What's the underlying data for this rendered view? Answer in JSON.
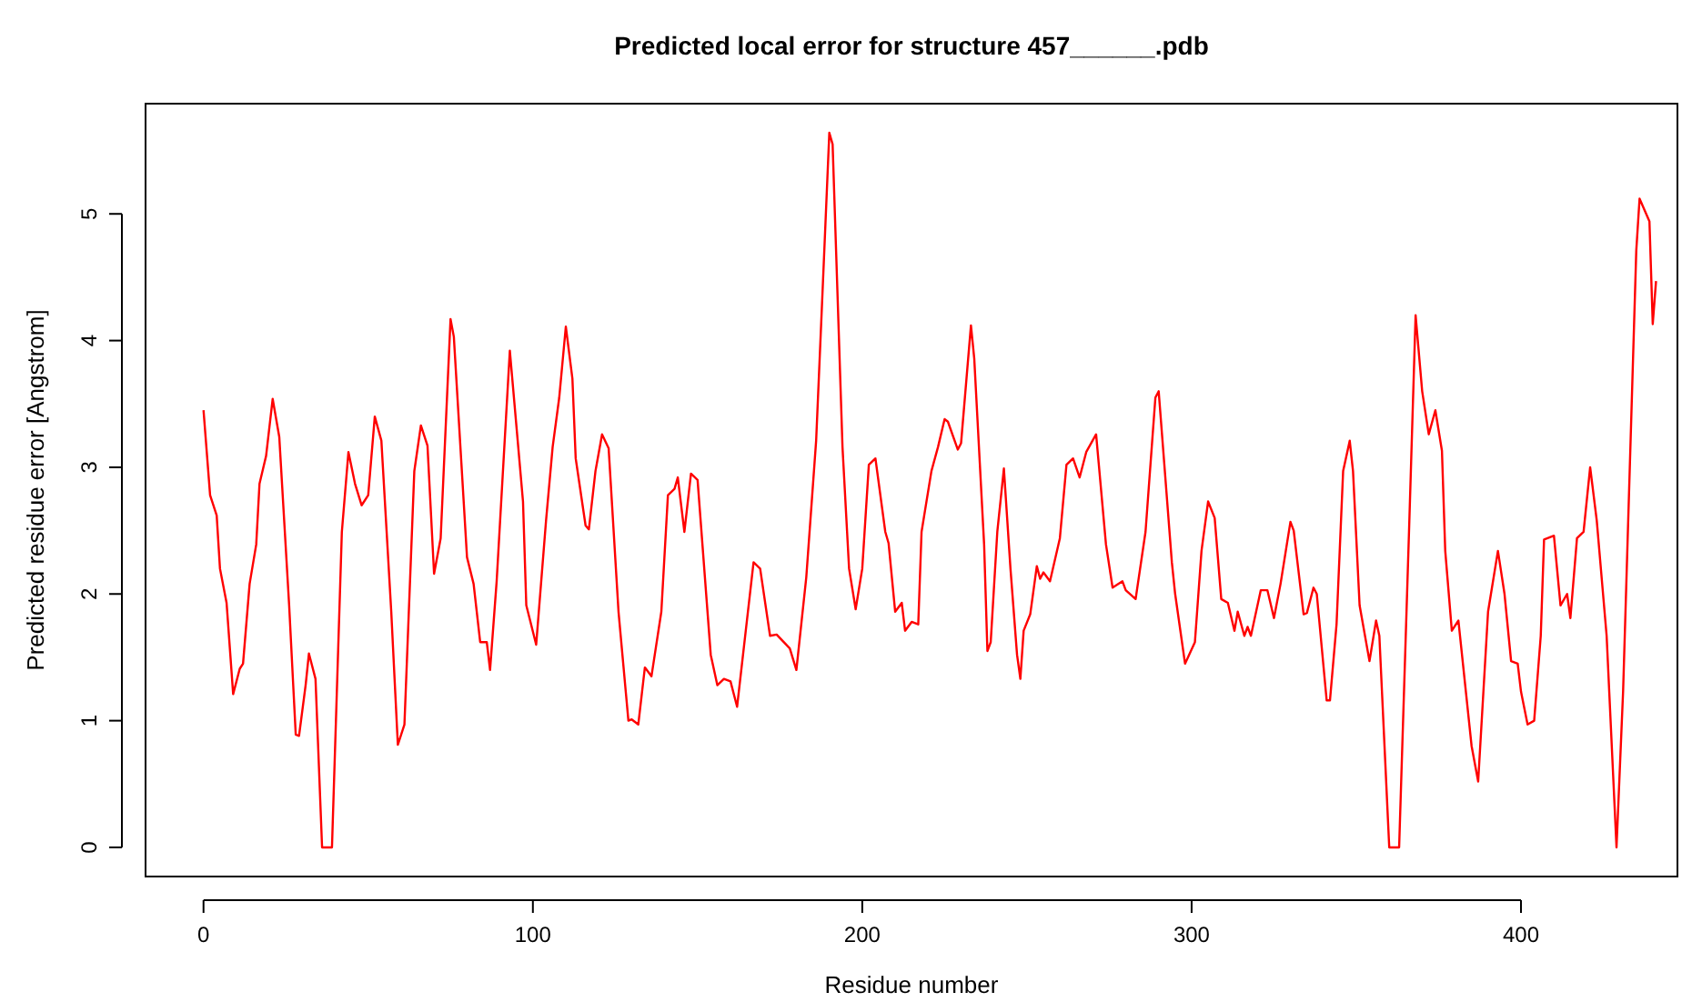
{
  "chart_data": {
    "type": "line",
    "title": "Predicted local error for structure 457______.pdb",
    "xlabel": "Residue number",
    "ylabel": "Predicted residue error [Angstrom]",
    "xlim": [
      -17.6,
      447.5
    ],
    "ylim": [
      -0.23,
      5.87
    ],
    "xticks": [
      0,
      100,
      200,
      300,
      400
    ],
    "yticks": [
      0,
      1,
      2,
      3,
      4,
      5
    ],
    "grid": false,
    "marker": "none",
    "line_style": "solid",
    "series": [
      {
        "color": "#ff0000",
        "x": [
          0,
          2,
          4,
          5,
          7,
          9,
          11,
          12,
          14,
          16,
          17,
          19,
          21,
          23,
          26,
          28,
          29,
          31,
          32,
          34,
          36,
          39,
          42,
          44,
          46,
          48,
          50,
          52,
          54,
          57,
          59,
          61,
          64,
          66,
          68,
          70,
          72,
          75,
          76,
          80,
          82,
          84,
          86,
          87,
          89,
          93,
          97,
          98,
          101,
          104,
          106,
          108,
          110,
          112,
          113,
          116,
          117,
          119,
          121,
          123,
          126,
          129,
          130,
          132,
          134,
          136,
          139,
          141,
          143,
          144,
          146,
          148,
          150,
          154,
          156,
          158,
          160,
          162,
          167,
          169,
          172,
          174,
          178,
          180,
          183,
          186,
          188,
          190,
          191,
          194,
          196,
          198,
          200,
          202,
          204,
          207,
          208,
          210,
          212,
          213,
          215,
          217,
          218,
          221,
          223,
          225,
          226,
          229,
          230,
          233,
          234,
          237,
          238,
          239,
          241,
          243,
          245,
          247,
          248,
          249,
          251,
          253,
          254,
          255,
          257,
          260,
          262,
          264,
          266,
          268,
          271,
          274,
          276,
          279,
          280,
          283,
          286,
          289,
          290,
          294,
          295,
          298,
          301,
          303,
          305,
          307,
          309,
          311,
          313,
          314,
          316,
          317,
          318,
          321,
          323,
          325,
          327,
          330,
          331,
          334,
          335,
          337,
          338,
          341,
          342,
          344,
          346,
          348,
          349,
          351,
          354,
          356,
          357,
          360,
          363,
          366,
          368,
          370,
          372,
          374,
          376,
          377,
          379,
          381,
          385,
          387,
          390,
          393,
          395,
          397,
          399,
          400,
          402,
          404,
          406,
          407,
          410,
          412,
          414,
          415,
          417,
          419,
          421,
          423,
          426,
          429,
          431,
          435,
          436,
          439,
          440,
          441
        ],
        "values": [
          3.45,
          2.78,
          2.62,
          2.2,
          1.93,
          1.21,
          1.41,
          1.45,
          2.08,
          2.39,
          2.87,
          3.09,
          3.54,
          3.24,
          1.91,
          0.89,
          0.88,
          1.28,
          1.53,
          1.33,
          0,
          0,
          2.49,
          3.12,
          2.87,
          2.7,
          2.78,
          3.4,
          3.21,
          1.86,
          0.81,
          0.97,
          2.97,
          3.33,
          3.17,
          2.16,
          2.44,
          4.17,
          4.03,
          2.29,
          2.08,
          1.62,
          1.62,
          1.4,
          2.1,
          3.92,
          2.73,
          1.91,
          1.6,
          2.58,
          3.16,
          3.55,
          4.11,
          3.7,
          3.07,
          2.54,
          2.51,
          2.97,
          3.26,
          3.15,
          1.86,
          1.0,
          1.01,
          0.97,
          1.42,
          1.35,
          1.86,
          2.78,
          2.83,
          2.92,
          2.49,
          2.95,
          2.9,
          1.52,
          1.28,
          1.33,
          1.31,
          1.11,
          2.25,
          2.2,
          1.67,
          1.68,
          1.57,
          1.4,
          2.13,
          3.21,
          4.42,
          5.64,
          5.55,
          3.16,
          2.2,
          1.88,
          2.2,
          3.02,
          3.07,
          2.49,
          2.4,
          1.86,
          1.93,
          1.71,
          1.78,
          1.76,
          2.49,
          2.97,
          3.16,
          3.38,
          3.36,
          3.14,
          3.19,
          4.12,
          3.86,
          2.39,
          1.55,
          1.62,
          2.49,
          2.99,
          2.2,
          1.52,
          1.33,
          1.71,
          1.84,
          2.22,
          2.12,
          2.17,
          2.1,
          2.44,
          3.02,
          3.07,
          2.92,
          3.12,
          3.26,
          2.39,
          2.05,
          2.1,
          2.03,
          1.96,
          2.49,
          3.55,
          3.6,
          2.25,
          2.0,
          1.45,
          1.62,
          2.34,
          2.73,
          2.6,
          1.96,
          1.93,
          1.71,
          1.86,
          1.67,
          1.74,
          1.67,
          2.03,
          2.03,
          1.81,
          2.08,
          2.57,
          2.5,
          1.84,
          1.85,
          2.05,
          2.0,
          1.16,
          1.16,
          1.76,
          2.97,
          3.21,
          2.97,
          1.91,
          1.47,
          1.79,
          1.67,
          0,
          0,
          2.49,
          4.2,
          3.6,
          3.26,
          3.45,
          3.13,
          2.34,
          1.71,
          1.79,
          0.8,
          0.52,
          1.86,
          2.34,
          2.0,
          1.47,
          1.45,
          1.23,
          0.97,
          1.0,
          1.67,
          2.43,
          2.46,
          1.91,
          2.0,
          1.81,
          2.44,
          2.49,
          3.0,
          2.58,
          1.67,
          0,
          1.23,
          4.71,
          5.12,
          4.94,
          4.13,
          4.47
        ]
      }
    ]
  }
}
